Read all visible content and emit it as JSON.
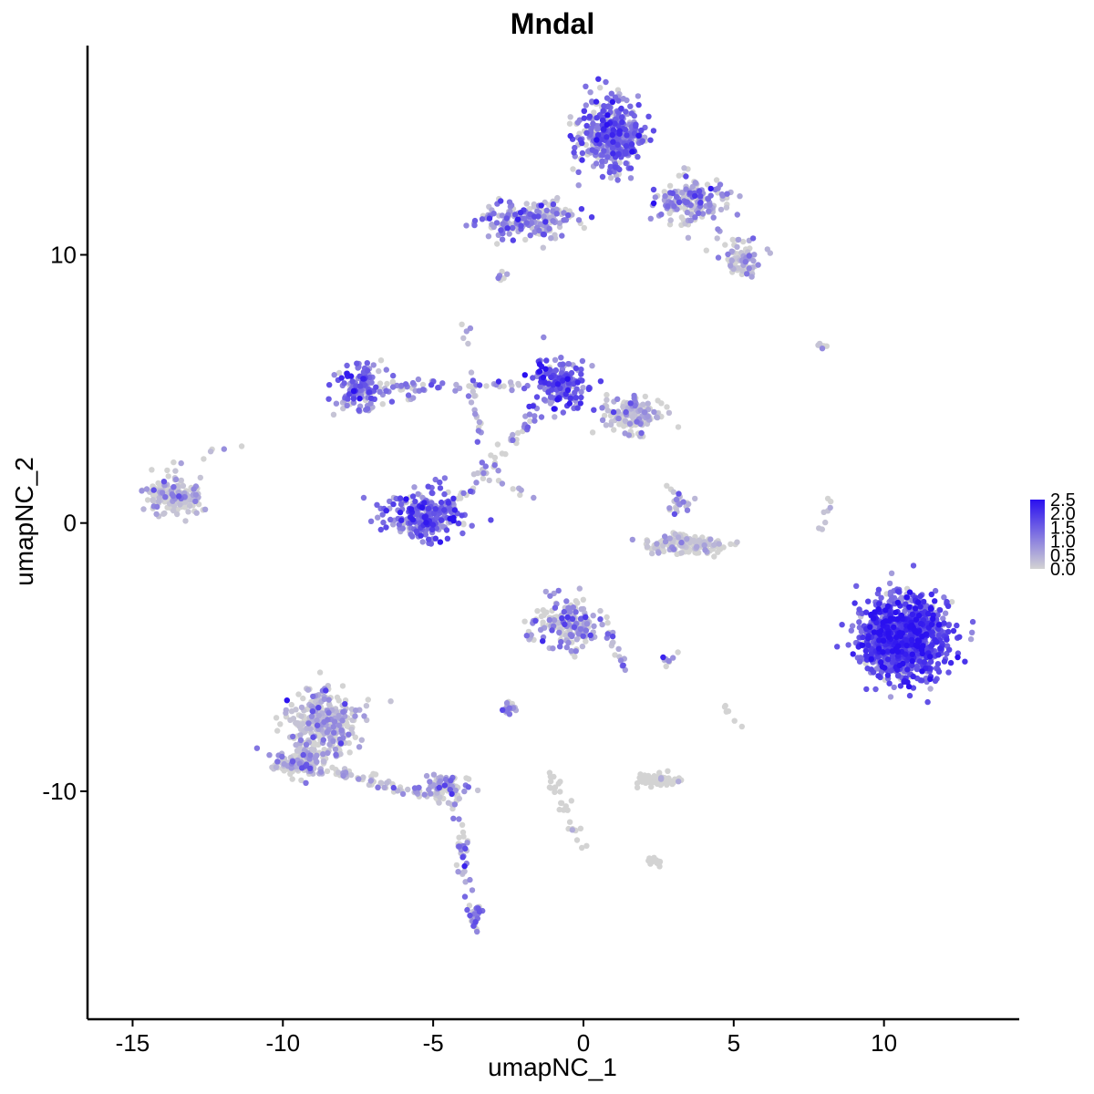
{
  "chart_data": {
    "type": "scatter",
    "title": "Mndal",
    "xlabel": "umapNC_1",
    "ylabel": "umapNC_2",
    "xlim": [
      -16.5,
      14.5
    ],
    "ylim": [
      -18.5,
      17.8
    ],
    "x_ticks": [
      -15,
      -10,
      -5,
      0,
      5,
      10
    ],
    "x_tick_labels": [
      "-15",
      "-10",
      "-5",
      "0",
      "5",
      "10"
    ],
    "y_ticks": [
      -10,
      0,
      10
    ],
    "y_tick_labels": [
      "-10",
      "0",
      "10"
    ],
    "grid": false,
    "legend": {
      "placement": "right",
      "type": "colorbar",
      "min": 0.0,
      "max": 2.5,
      "ticks": [
        2.5,
        2.0,
        1.5,
        1.0,
        0.5,
        0.0
      ],
      "tick_labels": [
        "2.5",
        "2.0",
        "1.5",
        "1.0",
        "0.5",
        "0.0"
      ],
      "low_color": "#d3d3d3",
      "high_color": "#2a10f0"
    },
    "clusters": [
      {
        "cx": 0.9,
        "cy": 14.5,
        "sx": 1.0,
        "sy": 1.2,
        "n": 420,
        "mean_expr": 1.2
      },
      {
        "cx": 3.6,
        "cy": 12.0,
        "sx": 1.0,
        "sy": 0.7,
        "n": 180,
        "mean_expr": 0.9
      },
      {
        "cx": -1.8,
        "cy": 11.3,
        "sx": 1.5,
        "sy": 0.6,
        "n": 200,
        "mean_expr": 0.9
      },
      {
        "cx": 5.3,
        "cy": 9.8,
        "sx": 0.6,
        "sy": 0.5,
        "n": 70,
        "mean_expr": 0.5
      },
      {
        "cx": -7.4,
        "cy": 5.0,
        "sx": 0.8,
        "sy": 0.9,
        "n": 120,
        "mean_expr": 1.3
      },
      {
        "cx": -0.8,
        "cy": 5.2,
        "sx": 0.8,
        "sy": 0.9,
        "n": 170,
        "mean_expr": 1.5
      },
      {
        "cx": 1.7,
        "cy": 4.1,
        "sx": 1.0,
        "sy": 0.6,
        "n": 150,
        "mean_expr": 0.5
      },
      {
        "cx": -5.3,
        "cy": 0.3,
        "sx": 1.2,
        "sy": 0.8,
        "n": 260,
        "mean_expr": 1.3
      },
      {
        "cx": -13.6,
        "cy": 1.0,
        "sx": 0.8,
        "sy": 0.6,
        "n": 170,
        "mean_expr": 0.3
      },
      {
        "cx": 3.4,
        "cy": -0.8,
        "sx": 1.1,
        "sy": 0.3,
        "n": 150,
        "mean_expr": 0.1
      },
      {
        "cx": 3.2,
        "cy": 0.8,
        "sx": 0.3,
        "sy": 0.5,
        "n": 25,
        "mean_expr": 0.7
      },
      {
        "cx": 10.7,
        "cy": -4.3,
        "sx": 1.3,
        "sy": 1.3,
        "n": 1200,
        "mean_expr": 1.6
      },
      {
        "cx": -0.5,
        "cy": -3.8,
        "sx": 0.8,
        "sy": 0.8,
        "n": 170,
        "mean_expr": 0.7
      },
      {
        "cx": -8.6,
        "cy": -7.5,
        "sx": 1.0,
        "sy": 1.2,
        "n": 330,
        "mean_expr": 0.4
      },
      {
        "cx": -9.5,
        "cy": -8.9,
        "sx": 0.8,
        "sy": 0.5,
        "n": 130,
        "mean_expr": 0.4
      },
      {
        "cx": -4.6,
        "cy": -9.8,
        "sx": 0.8,
        "sy": 0.4,
        "n": 70,
        "mean_expr": 0.8
      },
      {
        "cx": 2.4,
        "cy": -9.6,
        "sx": 0.6,
        "sy": 0.2,
        "n": 70,
        "mean_expr": 0.05
      },
      {
        "cx": -2.5,
        "cy": -6.9,
        "sx": 0.3,
        "sy": 0.2,
        "n": 25,
        "mean_expr": 0.9
      },
      {
        "cx": 2.4,
        "cy": -12.6,
        "sx": 0.3,
        "sy": 0.2,
        "n": 20,
        "mean_expr": 0.05
      },
      {
        "cx": -3.6,
        "cy": -14.6,
        "sx": 0.2,
        "sy": 0.5,
        "n": 20,
        "mean_expr": 1.1
      },
      {
        "cx": 7.9,
        "cy": 6.6,
        "sx": 0.2,
        "sy": 0.1,
        "n": 8,
        "mean_expr": 0.1
      }
    ],
    "trails": [
      {
        "from": [
          -7.4,
          5.0
        ],
        "to": [
          -0.8,
          5.2
        ],
        "n": 60,
        "mean_expr": 1.0
      },
      {
        "from": [
          -0.8,
          5.2
        ],
        "to": [
          -4.0,
          0.8
        ],
        "n": 50,
        "mean_expr": 1.1
      },
      {
        "from": [
          -4.0,
          7.4
        ],
        "to": [
          -3.3,
          1.8
        ],
        "n": 25,
        "mean_expr": 0.7
      },
      {
        "from": [
          -9.5,
          -8.9
        ],
        "to": [
          -4.3,
          -10.4
        ],
        "n": 70,
        "mean_expr": 0.5
      },
      {
        "from": [
          -4.3,
          -10.4
        ],
        "to": [
          -3.6,
          -15.2
        ],
        "n": 45,
        "mean_expr": 1.0
      },
      {
        "from": [
          -1.1,
          -9.3
        ],
        "to": [
          -0.1,
          -12.2
        ],
        "n": 30,
        "mean_expr": 0.05
      },
      {
        "from": [
          -2.0,
          -4.5
        ],
        "to": [
          -1.1,
          -2.7
        ],
        "n": 15,
        "mean_expr": 0.9
      },
      {
        "from": [
          0.6,
          -3.5
        ],
        "to": [
          1.3,
          -5.4
        ],
        "n": 20,
        "mean_expr": 0.7
      },
      {
        "from": [
          7.9,
          -0.3
        ],
        "to": [
          8.2,
          0.9
        ],
        "n": 8,
        "mean_expr": 0.1
      },
      {
        "from": [
          -14.2,
          2.0
        ],
        "to": [
          -11.3,
          2.8
        ],
        "n": 10,
        "mean_expr": 0.3
      },
      {
        "from": [
          -3.6,
          1.8
        ],
        "to": [
          -1.3,
          0.8
        ],
        "n": 12,
        "mean_expr": 0.3
      },
      {
        "from": [
          4.8,
          -6.7
        ],
        "to": [
          5.1,
          -7.6
        ],
        "n": 6,
        "mean_expr": 0.05
      },
      {
        "from": [
          -2.8,
          8.9
        ],
        "to": [
          -2.6,
          9.3
        ],
        "n": 6,
        "mean_expr": 0.6
      },
      {
        "from": [
          5.6,
          10.6
        ],
        "to": [
          4.0,
          10.2
        ],
        "n": 10,
        "mean_expr": 0.5
      },
      {
        "from": [
          2.6,
          -5.1
        ],
        "to": [
          3.2,
          -4.9
        ],
        "n": 8,
        "mean_expr": 1.0
      },
      {
        "from": [
          -6.6,
          5.7
        ],
        "to": [
          -5.4,
          4.3
        ],
        "n": 10,
        "mean_expr": 0.8
      }
    ]
  }
}
